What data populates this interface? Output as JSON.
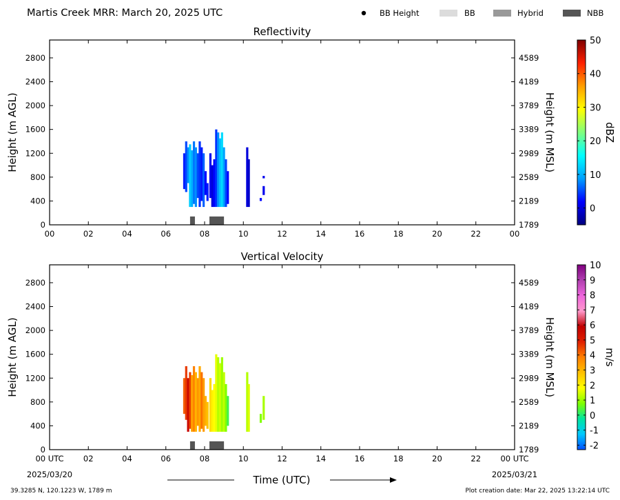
{
  "header": {
    "title": "Martis Creek MRR:  March 20, 2025 UTC",
    "legend": [
      {
        "label": "BB Height",
        "kind": "dot",
        "color": "#000000"
      },
      {
        "label": "BB",
        "kind": "box",
        "color": "#dcdcdc"
      },
      {
        "label": "Hybrid",
        "kind": "box",
        "color": "#999999"
      },
      {
        "label": "NBB",
        "kind": "box",
        "color": "#555555"
      }
    ]
  },
  "footer": {
    "location": "39.3285 N, 120.1223 W, 1789 m",
    "creation": "Plot creation date: Mar 22, 2025 13:22:14 UTC",
    "time_label": "Time (UTC)",
    "start_date": "2025/03/20",
    "end_date": "2025/03/21"
  },
  "colors": {
    "nbb": "#555555"
  },
  "chart_data": [
    {
      "type": "heatmap",
      "title": "Reflectivity",
      "ylabel": "Height (m AGL)",
      "ylabel2": "Height (m MSL)",
      "x_ticks": [
        "00",
        "02",
        "04",
        "06",
        "08",
        "10",
        "12",
        "14",
        "16",
        "18",
        "20",
        "22",
        "00"
      ],
      "xlim": [
        0,
        24
      ],
      "ylim": [
        0,
        3100
      ],
      "y_ticks": [
        "0",
        "400",
        "800",
        "1200",
        "1600",
        "2000",
        "2400",
        "2800"
      ],
      "y2_ticks": [
        "1789",
        "2189",
        "2589",
        "2989",
        "3389",
        "3789",
        "4189",
        "4589"
      ],
      "colorbar": {
        "label": "dBZ",
        "range": [
          -5,
          50
        ],
        "ticks": [
          "0",
          "10",
          "20",
          "30",
          "40",
          "50"
        ],
        "tick_values": [
          0,
          10,
          20,
          30,
          40,
          50
        ],
        "stops": [
          "#00007f",
          "#0000ff",
          "#00a0ff",
          "#00ffff",
          "#7fff7f",
          "#ffff00",
          "#ff9f00",
          "#ff2000",
          "#7f0000"
        ]
      },
      "bright_band": [
        {
          "start": 7.25,
          "end": 7.5,
          "kind": "NBB"
        },
        {
          "start": 8.25,
          "end": 9.0,
          "kind": "NBB"
        }
      ],
      "columns": [
        {
          "t": 6.95,
          "bottom": 600,
          "top": 1200,
          "value": 3
        },
        {
          "t": 7.05,
          "bottom": 550,
          "top": 1400,
          "value": 5
        },
        {
          "t": 7.15,
          "bottom": 700,
          "top": 1300,
          "value": 8
        },
        {
          "t": 7.25,
          "bottom": 300,
          "top": 1350,
          "value": 12
        },
        {
          "t": 7.35,
          "bottom": 300,
          "top": 1250,
          "value": 10
        },
        {
          "t": 7.45,
          "bottom": 350,
          "top": 1400,
          "value": 7
        },
        {
          "t": 7.55,
          "bottom": 300,
          "top": 1300,
          "value": 8
        },
        {
          "t": 7.65,
          "bottom": 450,
          "top": 1200,
          "value": 5
        },
        {
          "t": 7.75,
          "bottom": 300,
          "top": 1400,
          "value": 4
        },
        {
          "t": 7.85,
          "bottom": 400,
          "top": 1300,
          "value": 3
        },
        {
          "t": 7.95,
          "bottom": 300,
          "top": 1200,
          "value": 6
        },
        {
          "t": 8.05,
          "bottom": 500,
          "top": 900,
          "value": 2
        },
        {
          "t": 8.15,
          "bottom": 400,
          "top": 700,
          "value": 3
        },
        {
          "t": 8.3,
          "bottom": 450,
          "top": 1200,
          "value": 1
        },
        {
          "t": 8.4,
          "bottom": 300,
          "top": 1000,
          "value": 0
        },
        {
          "t": 8.5,
          "bottom": 300,
          "top": 1100,
          "value": 2
        },
        {
          "t": 8.6,
          "bottom": 300,
          "top": 1600,
          "value": 4
        },
        {
          "t": 8.7,
          "bottom": 300,
          "top": 1550,
          "value": 8
        },
        {
          "t": 8.8,
          "bottom": 300,
          "top": 1450,
          "value": 11
        },
        {
          "t": 8.9,
          "bottom": 300,
          "top": 1550,
          "value": 13
        },
        {
          "t": 9.0,
          "bottom": 300,
          "top": 1300,
          "value": 9
        },
        {
          "t": 9.1,
          "bottom": 300,
          "top": 1100,
          "value": 5
        },
        {
          "t": 9.2,
          "bottom": 350,
          "top": 900,
          "value": 2
        },
        {
          "t": 10.2,
          "bottom": 300,
          "top": 1300,
          "value": 0
        },
        {
          "t": 10.28,
          "bottom": 300,
          "top": 1100,
          "value": -1
        },
        {
          "t": 10.9,
          "bottom": 400,
          "top": 450,
          "value": 2
        },
        {
          "t": 11.05,
          "bottom": 500,
          "top": 650,
          "value": 1
        },
        {
          "t": 11.05,
          "bottom": 780,
          "top": 820,
          "value": 1
        }
      ]
    },
    {
      "type": "heatmap",
      "title": "Vertical Velocity",
      "ylabel": "Height (m AGL)",
      "ylabel2": "Height (m MSL)",
      "x_ticks": [
        "00 UTC",
        "02",
        "04",
        "06",
        "08",
        "10",
        "12",
        "14",
        "16",
        "18",
        "20",
        "22",
        "00 UTC"
      ],
      "xlim": [
        0,
        24
      ],
      "ylim": [
        0,
        3100
      ],
      "y_ticks": [
        "0",
        "400",
        "800",
        "1200",
        "1600",
        "2000",
        "2400",
        "2800"
      ],
      "y2_ticks": [
        "1789",
        "2189",
        "2589",
        "2989",
        "3389",
        "3789",
        "4189",
        "4589"
      ],
      "colorbar": {
        "label": "m/s",
        "range": [
          -2.3,
          10
        ],
        "ticks": [
          "-2",
          "-1",
          "0",
          "1",
          "2",
          "3",
          "4",
          "5",
          "6",
          "7",
          "8",
          "9",
          "10"
        ],
        "tick_values": [
          -2,
          -1,
          0,
          1,
          2,
          3,
          4,
          5,
          6,
          7,
          8,
          9,
          10
        ],
        "stops": [
          "#0050ff",
          "#00c8ff",
          "#00e6a0",
          "#7fff00",
          "#ffff00",
          "#ffc000",
          "#ff8000",
          "#e02000",
          "#c00000",
          "#ff99cc",
          "#ee66dd",
          "#b040b0",
          "#800080"
        ]
      },
      "bright_band": [
        {
          "start": 7.25,
          "end": 7.5,
          "kind": "NBB"
        },
        {
          "start": 8.25,
          "end": 9.0,
          "kind": "NBB"
        }
      ],
      "columns": [
        {
          "t": 6.95,
          "bottom": 600,
          "top": 1200,
          "value": 4.2
        },
        {
          "t": 7.05,
          "bottom": 500,
          "top": 1400,
          "value": 4.6
        },
        {
          "t": 7.15,
          "bottom": 300,
          "top": 1200,
          "value": 5.6
        },
        {
          "t": 7.25,
          "bottom": 350,
          "top": 1300,
          "value": 4.5
        },
        {
          "t": 7.35,
          "bottom": 300,
          "top": 1250,
          "value": 3.3
        },
        {
          "t": 7.45,
          "bottom": 300,
          "top": 1400,
          "value": 3.8
        },
        {
          "t": 7.55,
          "bottom": 300,
          "top": 1300,
          "value": 3.0
        },
        {
          "t": 7.65,
          "bottom": 400,
          "top": 1200,
          "value": 3.5
        },
        {
          "t": 7.75,
          "bottom": 300,
          "top": 1400,
          "value": 3.2
        },
        {
          "t": 7.85,
          "bottom": 350,
          "top": 1300,
          "value": 4.0
        },
        {
          "t": 7.95,
          "bottom": 300,
          "top": 1200,
          "value": 3.4
        },
        {
          "t": 8.05,
          "bottom": 400,
          "top": 900,
          "value": 3.1
        },
        {
          "t": 8.15,
          "bottom": 350,
          "top": 800,
          "value": 2.8
        },
        {
          "t": 8.3,
          "bottom": 300,
          "top": 1200,
          "value": 2.4
        },
        {
          "t": 8.4,
          "bottom": 300,
          "top": 1000,
          "value": 2.0
        },
        {
          "t": 8.5,
          "bottom": 300,
          "top": 1100,
          "value": 1.8
        },
        {
          "t": 8.6,
          "bottom": 300,
          "top": 1600,
          "value": 1.6
        },
        {
          "t": 8.7,
          "bottom": 300,
          "top": 1550,
          "value": 1.2
        },
        {
          "t": 8.8,
          "bottom": 300,
          "top": 1450,
          "value": 1.4
        },
        {
          "t": 8.9,
          "bottom": 300,
          "top": 1550,
          "value": 1.0
        },
        {
          "t": 9.0,
          "bottom": 300,
          "top": 1300,
          "value": 1.3
        },
        {
          "t": 9.1,
          "bottom": 300,
          "top": 1100,
          "value": 0.8
        },
        {
          "t": 9.2,
          "bottom": 400,
          "top": 900,
          "value": 0.3
        },
        {
          "t": 10.2,
          "bottom": 300,
          "top": 1300,
          "value": 1.2
        },
        {
          "t": 10.28,
          "bottom": 300,
          "top": 1100,
          "value": 1.5
        },
        {
          "t": 10.9,
          "bottom": 450,
          "top": 600,
          "value": 0.8
        },
        {
          "t": 11.05,
          "bottom": 500,
          "top": 900,
          "value": 1.1
        }
      ]
    }
  ]
}
